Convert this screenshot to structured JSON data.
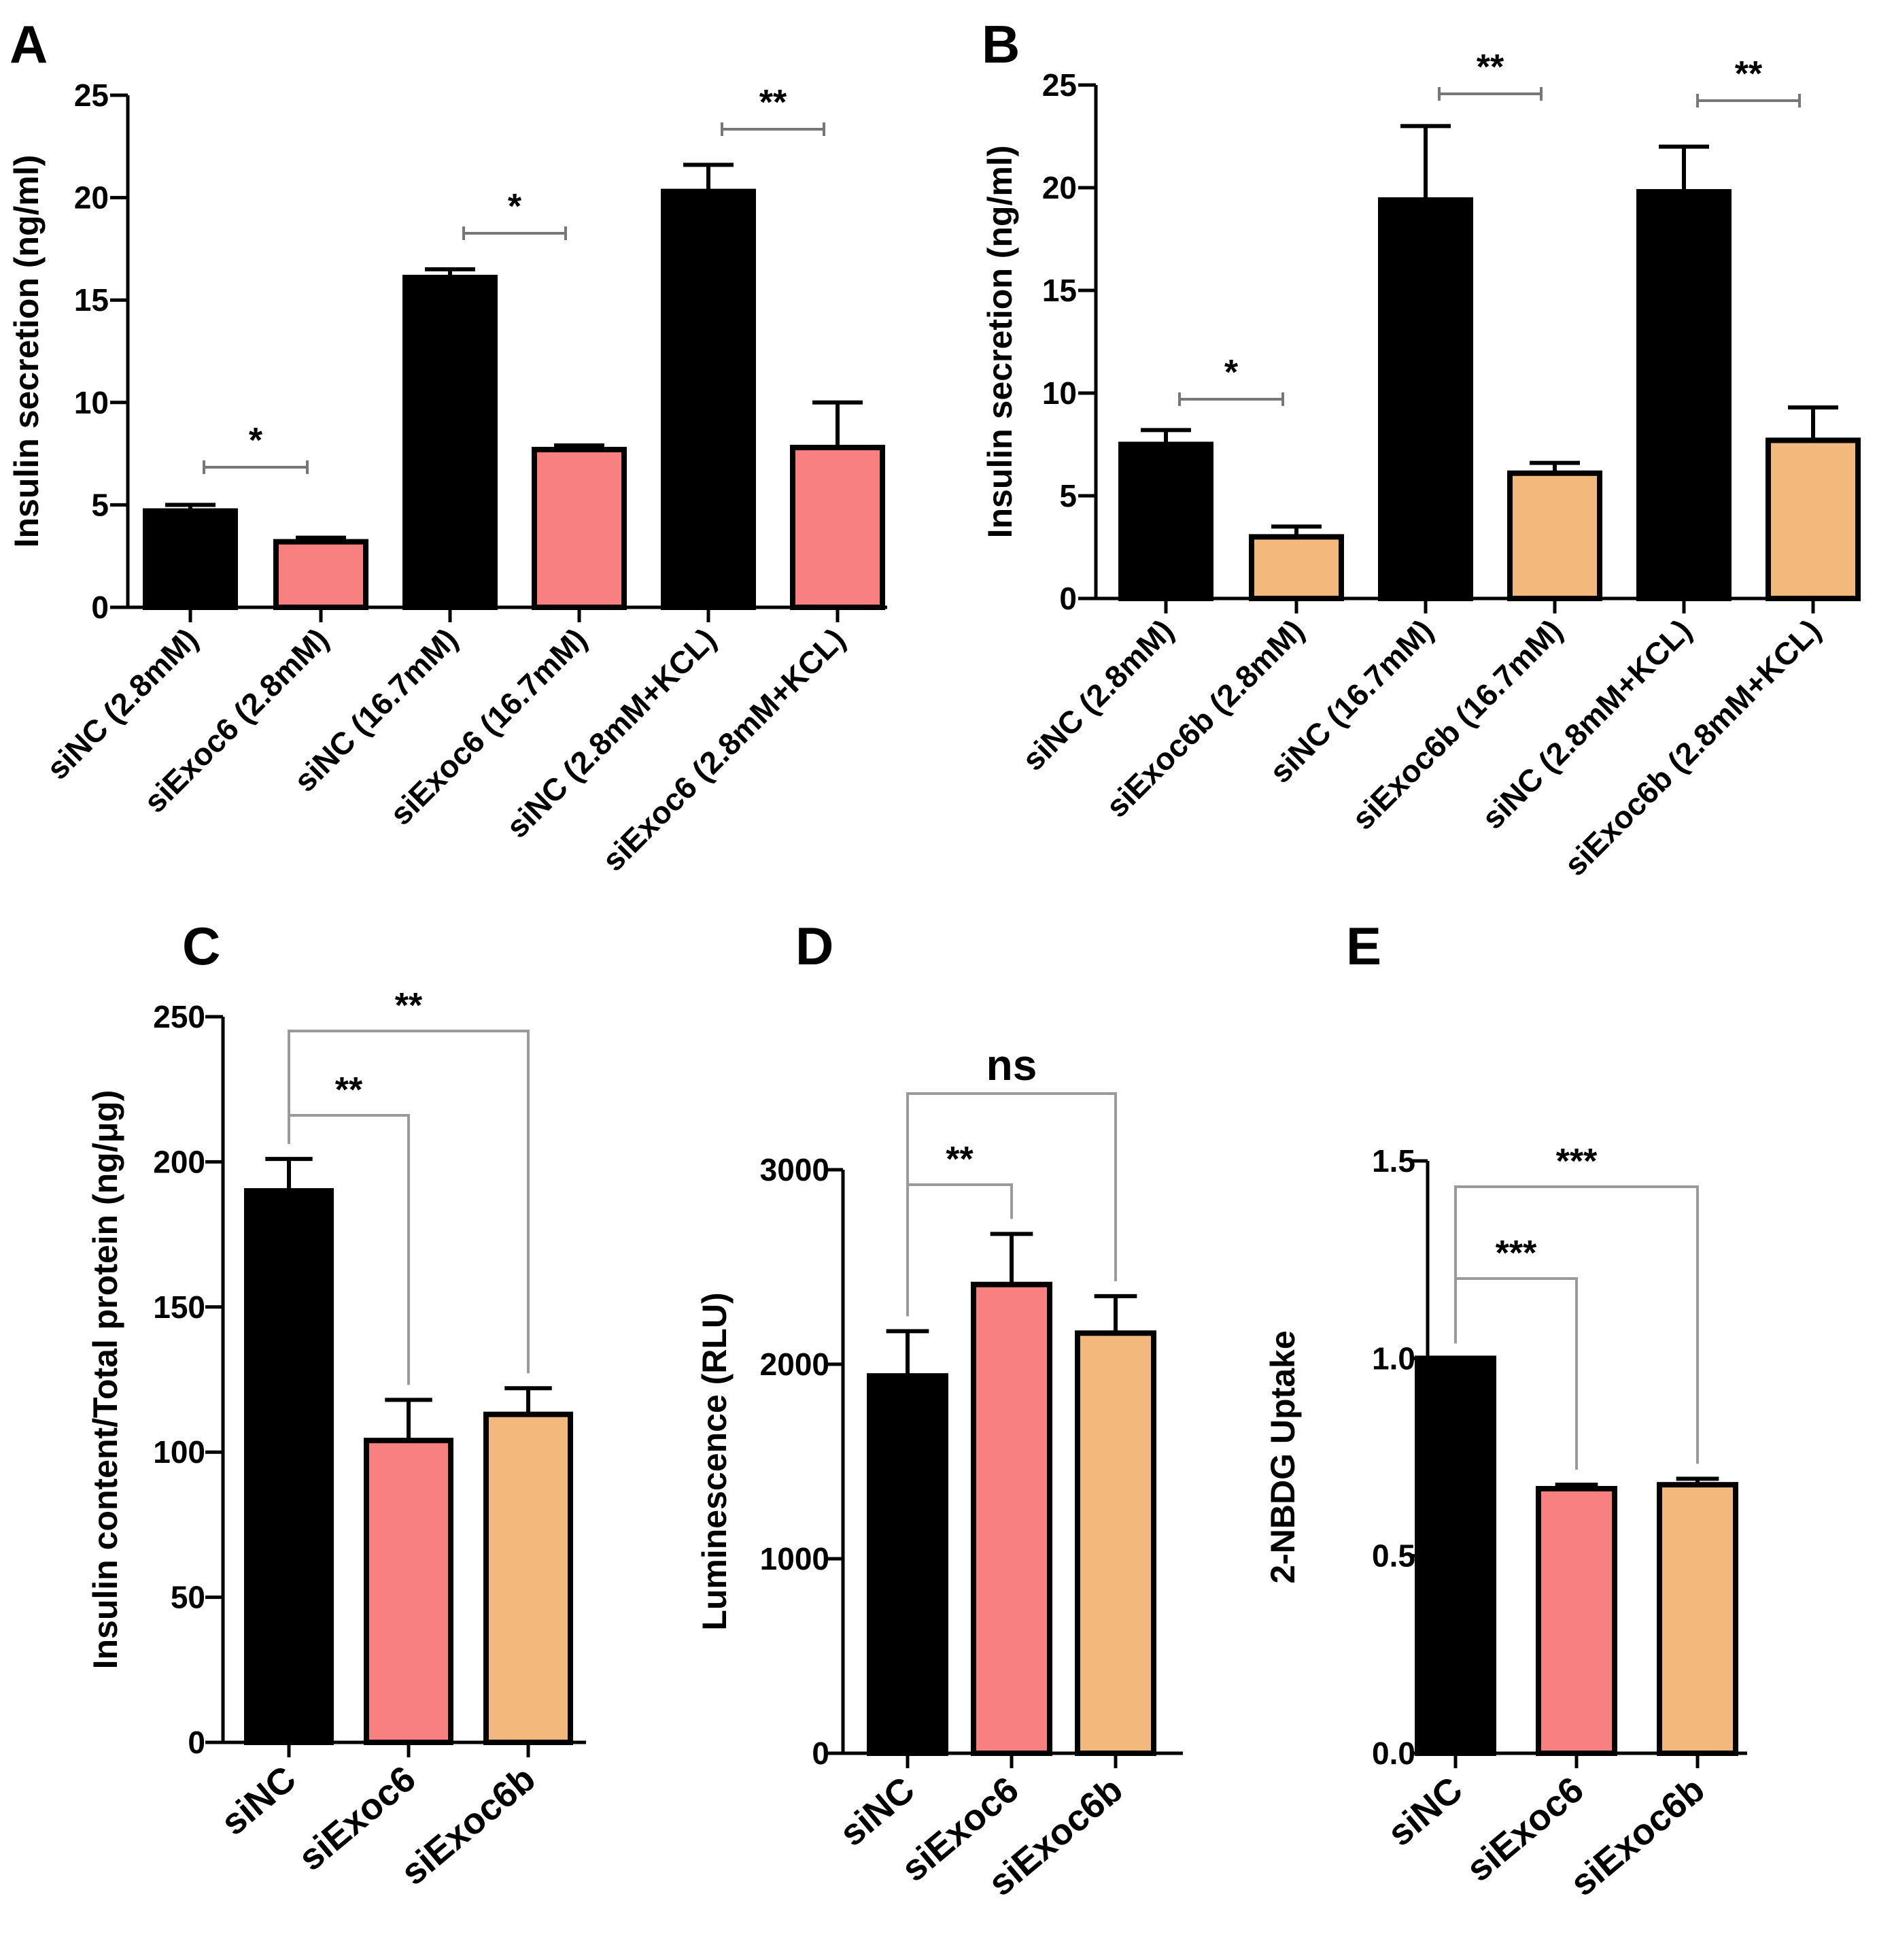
{
  "colors": {
    "siNC": "#000000",
    "siExoc6": "#f88080",
    "siExoc6b": "#f2b87c",
    "axis": "#000000",
    "bracket": "#9a9a9a"
  },
  "chart_data": [
    {
      "panel": "A",
      "type": "bar",
      "ylabel": "Insulin secretion (ng/ml)",
      "ylim": [
        0,
        25
      ],
      "yticks": [
        "0",
        "5",
        "10",
        "15",
        "20",
        "25"
      ],
      "categories": [
        "siNC (2.8mM)",
        "siExoc6 (2.8mM)",
        "siNC (16.7mM)",
        "siExoc6 (16.7mM)",
        "siNC (2.8mM+KCL)",
        "siExoc6 (2.8mM+KCL)"
      ],
      "values": [
        4.7,
        3.2,
        16.1,
        7.7,
        20.3,
        7.8
      ],
      "errors": [
        0.3,
        0.2,
        0.4,
        0.2,
        1.3,
        2.2
      ],
      "bar_colors": [
        "siNC",
        "siExoc6",
        "siNC",
        "siExoc6",
        "siNC",
        "siExoc6"
      ],
      "comparisons": [
        {
          "from": 0,
          "to": 1,
          "label": "*"
        },
        {
          "from": 2,
          "to": 3,
          "label": "*"
        },
        {
          "from": 4,
          "to": 5,
          "label": "**"
        }
      ]
    },
    {
      "panel": "B",
      "type": "bar",
      "ylabel": "Insulin secretion (ng/ml)",
      "ylim": [
        0,
        25
      ],
      "yticks": [
        "0",
        "5",
        "10",
        "15",
        "20",
        "25"
      ],
      "categories": [
        "siNC (2.8mM)",
        "siExoc6b (2.8mM)",
        "siNC (16.7mM)",
        "siExoc6b (16.7mM)",
        "siNC (2.8mM+KCL)",
        "siExoc6b (2.8mM+KCL)"
      ],
      "values": [
        7.5,
        3.0,
        19.4,
        6.1,
        19.8,
        7.7
      ],
      "errors": [
        0.7,
        0.5,
        3.6,
        0.5,
        2.2,
        1.6
      ],
      "bar_colors": [
        "siNC",
        "siExoc6b",
        "siNC",
        "siExoc6b",
        "siNC",
        "siExoc6b"
      ],
      "comparisons": [
        {
          "from": 0,
          "to": 1,
          "label": "*"
        },
        {
          "from": 2,
          "to": 3,
          "label": "**"
        },
        {
          "from": 4,
          "to": 5,
          "label": "**"
        }
      ]
    },
    {
      "panel": "C",
      "type": "bar",
      "ylabel": "Insulin content/Total protein (ng/μg)",
      "ylim": [
        0,
        250
      ],
      "yticks": [
        "0",
        "50",
        "100",
        "150",
        "200",
        "250"
      ],
      "categories": [
        "siNC",
        "siExoc6",
        "siExoc6b"
      ],
      "values": [
        190,
        104,
        113
      ],
      "errors": [
        11,
        14,
        9
      ],
      "bar_colors": [
        "siNC",
        "siExoc6",
        "siExoc6b"
      ],
      "comparisons": [
        {
          "from": 0,
          "to": 1,
          "label": "**"
        },
        {
          "from": 0,
          "to": 2,
          "label": "**"
        }
      ]
    },
    {
      "panel": "D",
      "type": "bar",
      "ylabel": "Luminescence (RLU)",
      "ylim": [
        0,
        3000
      ],
      "yticks": [
        "0",
        "1000",
        "2000",
        "3000"
      ],
      "categories": [
        "siNC",
        "siExoc6",
        "siExoc6b"
      ],
      "values": [
        1940,
        2410,
        2160
      ],
      "errors": [
        230,
        260,
        190
      ],
      "bar_colors": [
        "siNC",
        "siExoc6",
        "siExoc6b"
      ],
      "comparisons": [
        {
          "from": 0,
          "to": 1,
          "label": "**"
        },
        {
          "from": 0,
          "to": 2,
          "label": "ns"
        }
      ]
    },
    {
      "panel": "E",
      "type": "bar",
      "ylabel": "2-NBDG Uptake",
      "ylim": [
        0,
        1.5
      ],
      "yticks": [
        "0.0",
        "0.5",
        "1.0",
        "1.5"
      ],
      "categories": [
        "siNC",
        "siExoc6",
        "siExoc6b"
      ],
      "values": [
        1.0,
        0.67,
        0.68
      ],
      "errors": [
        0.0,
        0.01,
        0.015
      ],
      "bar_colors": [
        "siNC",
        "siExoc6",
        "siExoc6b"
      ],
      "comparisons": [
        {
          "from": 0,
          "to": 1,
          "label": "***"
        },
        {
          "from": 0,
          "to": 2,
          "label": "***"
        }
      ]
    }
  ]
}
